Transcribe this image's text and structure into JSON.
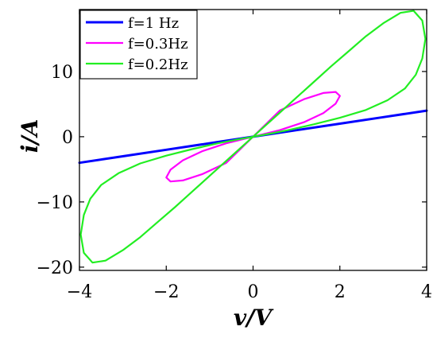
{
  "chart_data": {
    "type": "line",
    "title": "",
    "xlabel": "v/V",
    "ylabel": "i/A",
    "xlim": [
      -4,
      4
    ],
    "ylim": [
      -20.5,
      19.5
    ],
    "xticks": [
      -4,
      -2,
      0,
      2,
      4
    ],
    "xtick_labels": [
      "−4",
      "−2",
      "0",
      "2",
      "4"
    ],
    "yticks": [
      -20,
      -10,
      0,
      10
    ],
    "ytick_labels": [
      "−20",
      "−10",
      "0",
      "10"
    ],
    "grid": false,
    "legend_position": "top-left",
    "series": [
      {
        "name": "f=1 Hz",
        "color": "#0000ff",
        "x": [
          -4,
          -3,
          -2,
          -1,
          0,
          1,
          2,
          3,
          4
        ],
        "y": [
          -4,
          -3,
          -2,
          -1,
          0,
          1,
          2,
          3,
          4
        ]
      },
      {
        "name": "f=0.3Hz",
        "color": "#ff00ff",
        "x": [
          0,
          0.619,
          1.176,
          1.618,
          1.902,
          2.0,
          1.902,
          1.618,
          1.176,
          0.619,
          0,
          -0.619,
          -1.176,
          -1.618,
          -1.902,
          -2.0,
          -1.902,
          -1.618,
          -1.176,
          -0.619,
          0,
          0.619,
          1.176,
          1.618,
          1.902,
          2.0,
          1.902,
          1.618,
          1.176,
          0.619,
          0
        ],
        "y": [
          0,
          1.012,
          2.229,
          3.626,
          5.058,
          6.25,
          6.868,
          6.705,
          5.754,
          4.027,
          0,
          -1.012,
          -2.229,
          -3.626,
          -5.058,
          -6.25,
          -6.868,
          -6.705,
          -5.754,
          -4.027,
          0,
          1.012,
          2.229,
          3.626,
          5.058,
          6.25,
          6.868,
          6.705,
          5.754,
          4.027,
          0
        ]
      },
      {
        "name": "f=0.2Hz",
        "color": "#22ee22",
        "x": [
          0,
          0.2,
          0.6,
          1.0,
          1.4,
          1.8,
          2.2,
          2.6,
          3.0,
          3.4,
          3.7,
          3.9,
          3.97,
          3.9,
          3.75,
          3.5,
          3.1,
          2.6,
          2.0,
          1.4,
          0.8,
          0.3,
          0,
          -0.2,
          -0.6,
          -1.0,
          -1.4,
          -1.8,
          -2.2,
          -2.6,
          -3.0,
          -3.4,
          -3.7,
          -3.9,
          -3.97,
          -3.9,
          -3.75,
          -3.5,
          -3.1,
          -2.6,
          -2.0,
          -1.4,
          -0.8,
          -0.3,
          0
        ],
        "y": [
          0,
          1.2,
          3.6,
          6.0,
          8.4,
          10.8,
          13.1,
          15.4,
          17.4,
          19.0,
          19.3,
          17.8,
          15.0,
          12.0,
          9.5,
          7.4,
          5.6,
          4.1,
          2.9,
          1.9,
          1.0,
          0.35,
          0,
          -1.2,
          -3.6,
          -6.0,
          -8.4,
          -10.8,
          -13.1,
          -15.4,
          -17.4,
          -19.0,
          -19.3,
          -17.8,
          -15.0,
          -12.0,
          -9.5,
          -7.4,
          -5.6,
          -4.1,
          -2.9,
          -1.9,
          -1.0,
          -0.35,
          0
        ]
      }
    ]
  }
}
